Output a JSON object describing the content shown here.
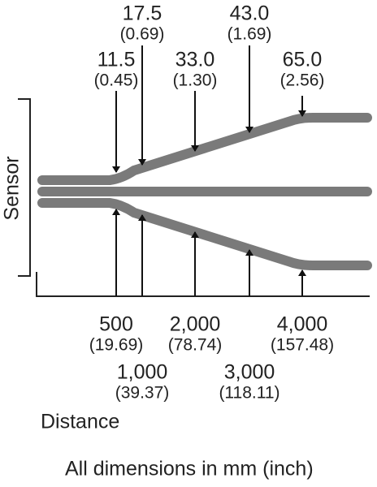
{
  "axis_labels": {
    "vertical": "Sensor",
    "horizontal": "Distance"
  },
  "widths": [
    {
      "mm": "11.5",
      "inch": "(0.45)"
    },
    {
      "mm": "17.5",
      "inch": "(0.69)"
    },
    {
      "mm": "33.0",
      "inch": "(1.30)"
    },
    {
      "mm": "43.0",
      "inch": "(1.69)"
    },
    {
      "mm": "65.0",
      "inch": "(2.56)"
    }
  ],
  "distances": [
    {
      "mm": "500",
      "inch": "(19.69)"
    },
    {
      "mm": "1,000",
      "inch": "(39.37)"
    },
    {
      "mm": "2,000",
      "inch": "(78.74)"
    },
    {
      "mm": "3,000",
      "inch": "(118.11)"
    },
    {
      "mm": "4,000",
      "inch": "(157.48)"
    }
  ],
  "footnote": "All dimensions in mm (inch)"
}
